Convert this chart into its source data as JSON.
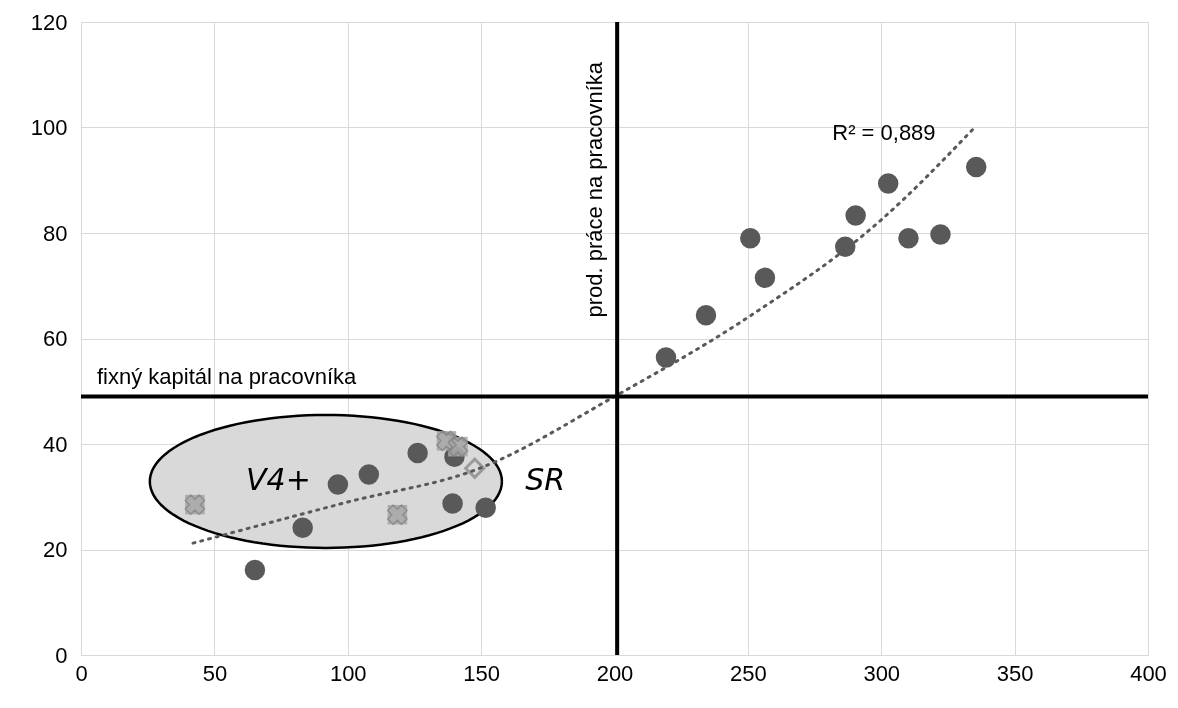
{
  "chart_data": {
    "type": "scatter",
    "xlim": [
      0,
      400
    ],
    "ylim": [
      0,
      120
    ],
    "xticks": [
      0,
      50,
      100,
      150,
      200,
      250,
      300,
      350,
      400
    ],
    "yticks": [
      0,
      20,
      40,
      60,
      80,
      100,
      120
    ],
    "grid": true,
    "series": [
      {
        "color": "#595959",
        "marker": "circle",
        "x": [
          65.2,
          83.1,
          96.3,
          107.9,
          126.2,
          139.3,
          151.7,
          140,
          219.3,
          234.3,
          250.9,
          256.4,
          286.5,
          290.4,
          302.6,
          310.2,
          322.2,
          335.6
        ],
        "values": [
          16.1,
          24.1,
          32.3,
          34.2,
          38.3,
          28.7,
          27.9,
          37.6,
          56.4,
          64.4,
          79.0,
          71.5,
          77.4,
          83.3,
          89.4,
          79.0,
          79.7,
          92.5
        ]
      },
      {
        "color": "#a6a6a6",
        "marker": "square",
        "x": [
          42.7,
          118.6,
          137,
          141.3
        ],
        "values": [
          28.5,
          26.6,
          40.6,
          39.5
        ]
      },
      {
        "color": "#808080",
        "marker": "diamond",
        "x": [
          147.6
        ],
        "values": [
          35.4
        ]
      },
      {
        "type": "line",
        "color": "#595959",
        "line_style": "dotted",
        "x": [
          42,
          100,
          150,
          200,
          250,
          300,
          335
        ],
        "values": [
          21.2,
          29,
          35.5,
          49,
          64,
          82.5,
          100
        ]
      }
    ],
    "ref_lines": [
      {
        "axis": "y",
        "value": 49,
        "label": "fixný kapitál na pracovníka",
        "color": "#000000"
      },
      {
        "axis": "x",
        "value": 201,
        "label": "prod. práce na pracovníka",
        "color": "#000000"
      }
    ],
    "annotations": [
      "V4+",
      "SR",
      "R² = 0,889"
    ]
  }
}
